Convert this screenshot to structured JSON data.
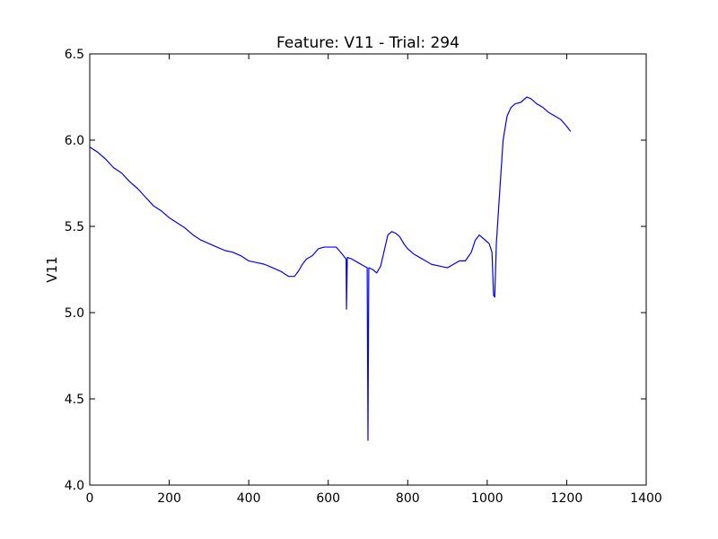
{
  "chart_data": {
    "type": "line",
    "title": "Feature: V11 - Trial: 294",
    "xlabel": "",
    "ylabel": "V11",
    "xlim": [
      0,
      1400
    ],
    "ylim": [
      4.0,
      6.5
    ],
    "x_ticks": [
      0,
      200,
      400,
      600,
      800,
      1000,
      1200,
      1400
    ],
    "y_ticks": [
      4.0,
      4.5,
      5.0,
      5.5,
      6.0,
      6.5
    ],
    "x_tick_labels": [
      "0",
      "200",
      "400",
      "600",
      "800",
      "1000",
      "1200",
      "1400"
    ],
    "y_tick_labels": [
      "4.0",
      "4.5",
      "5.0",
      "5.5",
      "6.0",
      "6.5"
    ],
    "grid": false,
    "line_color": "#0000ff",
    "series": [
      {
        "points": [
          [
            0,
            5.96
          ],
          [
            20,
            5.93
          ],
          [
            40,
            5.89
          ],
          [
            60,
            5.84
          ],
          [
            80,
            5.81
          ],
          [
            100,
            5.76
          ],
          [
            120,
            5.72
          ],
          [
            140,
            5.67
          ],
          [
            160,
            5.62
          ],
          [
            180,
            5.59
          ],
          [
            200,
            5.55
          ],
          [
            220,
            5.52
          ],
          [
            240,
            5.49
          ],
          [
            260,
            5.45
          ],
          [
            280,
            5.42
          ],
          [
            300,
            5.4
          ],
          [
            320,
            5.38
          ],
          [
            340,
            5.36
          ],
          [
            360,
            5.35
          ],
          [
            380,
            5.33
          ],
          [
            400,
            5.3
          ],
          [
            420,
            5.29
          ],
          [
            440,
            5.28
          ],
          [
            460,
            5.26
          ],
          [
            480,
            5.24
          ],
          [
            500,
            5.21
          ],
          [
            515,
            5.21
          ],
          [
            525,
            5.24
          ],
          [
            535,
            5.28
          ],
          [
            545,
            5.31
          ],
          [
            560,
            5.33
          ],
          [
            575,
            5.37
          ],
          [
            590,
            5.38
          ],
          [
            605,
            5.38
          ],
          [
            620,
            5.38
          ],
          [
            635,
            5.34
          ],
          [
            645,
            5.31
          ],
          [
            646,
            5.02
          ],
          [
            648,
            5.32
          ],
          [
            660,
            5.31
          ],
          [
            675,
            5.29
          ],
          [
            690,
            5.27
          ],
          [
            698,
            5.26
          ],
          [
            700,
            4.26
          ],
          [
            702,
            5.26
          ],
          [
            712,
            5.25
          ],
          [
            722,
            5.23
          ],
          [
            732,
            5.27
          ],
          [
            740,
            5.35
          ],
          [
            750,
            5.45
          ],
          [
            760,
            5.47
          ],
          [
            770,
            5.46
          ],
          [
            780,
            5.44
          ],
          [
            790,
            5.4
          ],
          [
            800,
            5.37
          ],
          [
            815,
            5.34
          ],
          [
            830,
            5.32
          ],
          [
            845,
            5.3
          ],
          [
            860,
            5.28
          ],
          [
            880,
            5.27
          ],
          [
            900,
            5.26
          ],
          [
            915,
            5.28
          ],
          [
            930,
            5.3
          ],
          [
            945,
            5.3
          ],
          [
            960,
            5.35
          ],
          [
            970,
            5.42
          ],
          [
            980,
            5.45
          ],
          [
            995,
            5.42
          ],
          [
            1005,
            5.4
          ],
          [
            1012,
            5.35
          ],
          [
            1016,
            5.1
          ],
          [
            1019,
            5.09
          ],
          [
            1023,
            5.4
          ],
          [
            1030,
            5.65
          ],
          [
            1040,
            6.0
          ],
          [
            1050,
            6.14
          ],
          [
            1060,
            6.19
          ],
          [
            1070,
            6.21
          ],
          [
            1085,
            6.22
          ],
          [
            1100,
            6.25
          ],
          [
            1110,
            6.24
          ],
          [
            1125,
            6.21
          ],
          [
            1140,
            6.19
          ],
          [
            1155,
            6.16
          ],
          [
            1170,
            6.14
          ],
          [
            1185,
            6.12
          ],
          [
            1200,
            6.08
          ],
          [
            1210,
            6.05
          ]
        ]
      }
    ]
  }
}
